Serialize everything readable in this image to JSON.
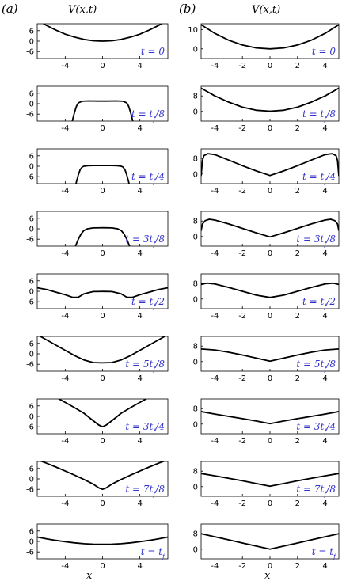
{
  "panel_labels": [
    "(a)",
    "(b)"
  ],
  "column_titles": [
    "V(x,t)",
    "V(x,t)"
  ],
  "xlabel": "x",
  "colors": {
    "curve": "#000000",
    "time_label": "#3333cc",
    "axes": "#000000"
  },
  "chart_data": [
    {
      "type": "line",
      "column": "a",
      "title": "V(x,t)",
      "xlabel": "x",
      "xlim": [
        -7,
        7
      ],
      "ylim": [
        -10,
        10
      ],
      "xticks": [
        -4,
        0,
        4
      ],
      "yticks": [
        6,
        0,
        -6
      ],
      "xtick_labels": [
        "-4",
        "0",
        "4"
      ],
      "ytick_labels": [
        "6",
        "0",
        "-6"
      ],
      "panels": [
        {
          "label": "t = 0",
          "x": [
            -7,
            -6,
            -5,
            -4,
            -3,
            -2,
            -1,
            0,
            1,
            2,
            3,
            4,
            5,
            6,
            7
          ],
          "y": [
            12.3,
            9,
            6.3,
            4,
            2.3,
            1,
            0.25,
            0,
            0.25,
            1,
            2.3,
            4,
            6.3,
            9,
            12.3
          ]
        },
        {
          "label": "t = t_f/8",
          "x": [
            -3.4,
            -3.2,
            -3,
            -2.8,
            -2.6,
            -2.2,
            -1.5,
            -0.5,
            0,
            0.5,
            1.5,
            2.2,
            2.6,
            2.8,
            3,
            3.2,
            3.4
          ],
          "y": [
            -14,
            -9,
            -5,
            -1.5,
            0.5,
            1.4,
            1.6,
            1.5,
            1.5,
            1.5,
            1.6,
            1.4,
            0.5,
            -1.5,
            -5,
            -9,
            -14
          ]
        },
        {
          "label": "t = t_f/4",
          "x": [
            -3,
            -2.8,
            -2.6,
            -2.4,
            -2.2,
            -2,
            -1.6,
            -1,
            0,
            1,
            1.6,
            2,
            2.2,
            2.4,
            2.6,
            2.8,
            3
          ],
          "y": [
            -14,
            -9,
            -5,
            -2,
            -0.5,
            0,
            0.3,
            0.4,
            0.4,
            0.4,
            0.3,
            0,
            -0.5,
            -2,
            -5,
            -9,
            -14
          ]
        },
        {
          "label": "t = 3t_f/8",
          "x": [
            -3.2,
            -2.9,
            -2.6,
            -2.3,
            -2,
            -1.6,
            -1,
            0,
            1,
            1.6,
            2,
            2.3,
            2.6,
            2.9,
            3.2
          ],
          "y": [
            -14,
            -10,
            -6,
            -3,
            -1,
            0,
            0.5,
            0.6,
            0.5,
            0,
            -1,
            -3,
            -6,
            -10,
            -14
          ]
        },
        {
          "label": "t = t_f/2",
          "x": [
            -7,
            -6,
            -5,
            -4,
            -3.2,
            -2.6,
            -2,
            -1,
            0,
            1,
            2,
            2.6,
            3.2,
            4,
            5,
            6,
            7
          ],
          "y": [
            2,
            1,
            -0.5,
            -2,
            -3.5,
            -3.4,
            -1.5,
            -0.2,
            -0.1,
            -0.2,
            -1.5,
            -3.4,
            -3.5,
            -2,
            -0.5,
            1,
            2
          ]
        },
        {
          "label": "t = 5t_f/8",
          "x": [
            -7,
            -6,
            -5,
            -4,
            -3,
            -2,
            -1,
            0,
            1,
            2,
            3,
            4,
            5,
            6,
            7
          ],
          "y": [
            11,
            8,
            5,
            2,
            -1,
            -3.5,
            -5,
            -5.2,
            -5,
            -3.5,
            -1,
            2,
            5,
            8,
            11
          ]
        },
        {
          "label": "t = 3t_f/4",
          "x": [
            -6,
            -5,
            -4,
            -3,
            -2,
            -1,
            -0.4,
            0,
            0.4,
            1,
            2,
            3,
            4,
            5,
            6
          ],
          "y": [
            13,
            11,
            8,
            5,
            1.8,
            -2.5,
            -5,
            -6,
            -5,
            -2.5,
            1.8,
            5,
            8,
            11,
            13
          ]
        },
        {
          "label": "t = 7t_f/8",
          "x": [
            -7,
            -6,
            -5,
            -4,
            -3,
            -2,
            -1,
            -0.4,
            0,
            0.4,
            1,
            2,
            3,
            4,
            5,
            6,
            7
          ],
          "y": [
            11,
            9,
            6.8,
            4.5,
            2.2,
            -0.3,
            -3,
            -5.2,
            -6,
            -5.2,
            -3,
            -0.3,
            2.2,
            4.5,
            6.8,
            9,
            11
          ]
        },
        {
          "label": "t = t_f",
          "x": [
            -7,
            -6,
            -5,
            -4,
            -3,
            -2,
            -1,
            0,
            1,
            2,
            3,
            4,
            5,
            6,
            7
          ],
          "y": [
            2.5,
            1.5,
            0.6,
            -0.2,
            -0.8,
            -1.3,
            -1.6,
            -1.7,
            -1.6,
            -1.3,
            -0.8,
            -0.2,
            0.6,
            1.5,
            2.5
          ]
        }
      ]
    },
    {
      "type": "line",
      "column": "b",
      "title": "V(x,t)",
      "xlabel": "x",
      "xlim": [
        -5,
        5
      ],
      "xticks": [
        -4,
        -2,
        0,
        2,
        4
      ],
      "xtick_labels": [
        "-4",
        "-2",
        "0",
        "2",
        "4"
      ],
      "panels": [
        {
          "label": "t = 0",
          "ylim": [
            -5,
            13
          ],
          "yticks": [
            10,
            0
          ],
          "ytick_labels": [
            "10",
            "0"
          ],
          "x": [
            -5,
            -4,
            -3,
            -2,
            -1,
            0,
            1,
            2,
            3,
            4,
            5
          ],
          "y": [
            12.5,
            8,
            4.5,
            2,
            0.5,
            0,
            0.5,
            2,
            4.5,
            8,
            12.5
          ]
        },
        {
          "label": "t = t_f/8",
          "ylim": [
            -5,
            13
          ],
          "yticks": [
            8,
            0
          ],
          "ytick_labels": [
            "8",
            "0"
          ],
          "x": [
            -5,
            -4,
            -3,
            -2,
            -1,
            0,
            1,
            2,
            3,
            4,
            5
          ],
          "y": [
            12,
            8,
            4.8,
            2.2,
            0.6,
            0.1,
            0.6,
            2.2,
            4.8,
            8,
            12
          ]
        },
        {
          "label": "t = t_f/4",
          "ylim": [
            -5,
            13
          ],
          "yticks": [
            8,
            0
          ],
          "ytick_labels": [
            "8",
            "0"
          ],
          "x": [
            -5,
            -4.9,
            -4.8,
            -4.5,
            -4,
            -3,
            -2,
            -1,
            0,
            1,
            2,
            3,
            4,
            4.5,
            4.8,
            4.9,
            5
          ],
          "y": [
            -1,
            7,
            9.5,
            10.5,
            10,
            7.2,
            4.3,
            1.6,
            -0.8,
            1.6,
            4.3,
            7.2,
            10,
            10.5,
            9.5,
            7,
            -1
          ]
        },
        {
          "label": "t = 3t_f/8",
          "ylim": [
            -5,
            13
          ],
          "yticks": [
            8,
            0
          ],
          "ytick_labels": [
            "8",
            "0"
          ],
          "x": [
            -5,
            -4.9,
            -4.7,
            -4.4,
            -4,
            -3,
            -2,
            -1,
            0,
            1,
            2,
            3,
            4,
            4.4,
            4.7,
            4.9,
            5
          ],
          "y": [
            3,
            6.5,
            8.2,
            8.9,
            8.5,
            6.5,
            4.2,
            1.9,
            -0.2,
            1.9,
            4.2,
            6.5,
            8.5,
            8.9,
            8.2,
            6.5,
            3
          ]
        },
        {
          "label": "t = t_f/2",
          "ylim": [
            -5,
            13
          ],
          "yticks": [
            8,
            0
          ],
          "ytick_labels": [
            "8",
            "0"
          ],
          "x": [
            -5,
            -4.6,
            -4,
            -3,
            -2,
            -1,
            0,
            1,
            2,
            3,
            4,
            4.6,
            5
          ],
          "y": [
            7.5,
            8.2,
            7.8,
            6,
            4,
            2,
            0.8,
            2,
            4,
            6,
            7.8,
            8.2,
            7.5
          ]
        },
        {
          "label": "t = 5t_f/8",
          "ylim": [
            -5,
            13
          ],
          "yticks": [
            8,
            0
          ],
          "ytick_labels": [
            "8",
            "0"
          ],
          "x": [
            -5,
            -4,
            -3,
            -2,
            -1,
            0,
            1,
            2,
            3,
            4,
            5
          ],
          "y": [
            6.5,
            6,
            4.8,
            3.4,
            1.8,
            0.2,
            1.8,
            3.4,
            4.8,
            6,
            6.5
          ]
        },
        {
          "label": "t = 3t_f/4",
          "ylim": [
            -5,
            13
          ],
          "yticks": [
            8,
            0
          ],
          "ytick_labels": [
            "8",
            "0"
          ],
          "x": [
            -5,
            -4,
            -3,
            -2,
            -1,
            0,
            1,
            2,
            3,
            4,
            5
          ],
          "y": [
            6.5,
            5.2,
            4,
            2.8,
            1.6,
            0.2,
            1.6,
            2.8,
            4,
            5.2,
            6.5
          ]
        },
        {
          "label": "t = 7t_f/8",
          "ylim": [
            -5,
            13
          ],
          "yticks": [
            8,
            0
          ],
          "ytick_labels": [
            "8",
            "0"
          ],
          "x": [
            -5,
            -4,
            -3,
            -2,
            -1,
            0,
            1,
            2,
            3,
            4,
            5
          ],
          "y": [
            6.8,
            5.6,
            4.3,
            3,
            1.6,
            0.2,
            1.6,
            3,
            4.3,
            5.6,
            6.8
          ]
        },
        {
          "label": "t = t_f",
          "ylim": [
            -5,
            13
          ],
          "yticks": [
            8,
            0
          ],
          "ytick_labels": [
            "8",
            "0"
          ],
          "x": [
            -5,
            -4,
            -3,
            -2,
            -1,
            0,
            1,
            2,
            3,
            4,
            5
          ],
          "y": [
            8,
            6.4,
            4.8,
            3.2,
            1.6,
            0,
            1.6,
            3.2,
            4.8,
            6.4,
            8
          ]
        }
      ]
    }
  ]
}
